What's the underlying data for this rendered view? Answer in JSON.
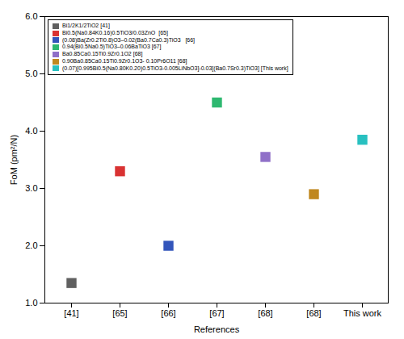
{
  "chart_data": {
    "type": "scatter",
    "xlabel": "References",
    "ylabel": "FoM (pm²/N)",
    "categories": [
      "[41]",
      "[65]",
      "[66]",
      "[67]",
      "[68]",
      "[68]",
      "This work"
    ],
    "series": [
      {
        "name": "Bi1/2K1/2TiO2 [41]",
        "color": "#606060",
        "values": [
          1.35,
          null,
          null,
          null,
          null,
          null,
          null
        ]
      },
      {
        "name": "Bi0.5(Na0.84K0.16)0.5TiO3/0.03ZnO  [65]",
        "color": "#d93232",
        "values": [
          null,
          3.3,
          null,
          null,
          null,
          null,
          null
        ]
      },
      {
        "name": "(0.08)Ba(Zr0.2Ti0.8)O3–0.02(Ba0.7Ca0.3)TiO3   [66]",
        "color": "#3355bb",
        "values": [
          null,
          null,
          2.0,
          null,
          null,
          null,
          null
        ]
      },
      {
        "name": "0.94(Bi0.5Na0.5)TiO3–0.06BaTiO3 [67]",
        "color": "#2eb870",
        "values": [
          null,
          null,
          null,
          4.5,
          null,
          null,
          null
        ]
      },
      {
        "name": "Ba0.85Ca0.15Ti0.9Zr0.1O2 [68]",
        "color": "#9070c8",
        "values": [
          null,
          null,
          null,
          null,
          3.55,
          null,
          null
        ]
      },
      {
        "name": "0.90Ba0.85Ca0.15Ti0.9Zr0.1O3- 0.10Pr6O11 [68]",
        "color": "#c08820",
        "values": [
          null,
          null,
          null,
          null,
          null,
          2.9,
          null
        ]
      },
      {
        "name": "(0.07)[0.995Bi0.5(Na0.80K0.20)0.5TiO3-0.005LiNbO3]-0.03[(Ba0.7Sr0.3)TiO3] [This work]",
        "color": "#28c0c0",
        "values": [
          null,
          null,
          null,
          null,
          null,
          null,
          3.85
        ]
      }
    ],
    "ylim": [
      1,
      6
    ],
    "yticks": [
      1,
      2,
      3,
      4,
      5,
      6
    ],
    "marker": "square",
    "legend": "upper left",
    "grid": false
  }
}
